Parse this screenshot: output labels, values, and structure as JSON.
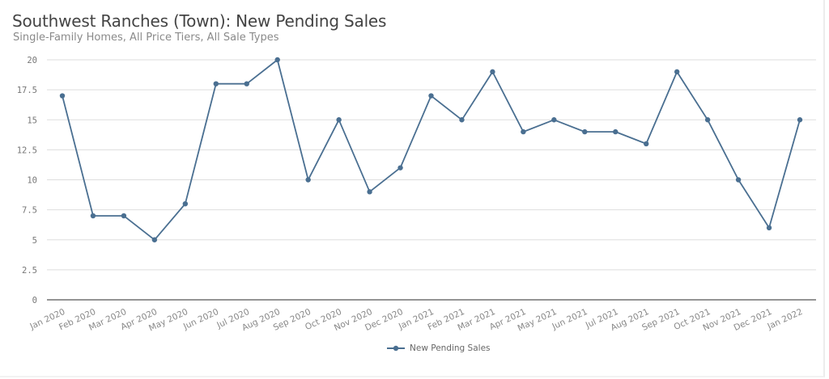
{
  "header": {
    "title": "Southwest Ranches (Town): New Pending Sales",
    "subtitle": "Single-Family Homes, All Price Tiers, All Sale Types"
  },
  "legend": {
    "items": [
      {
        "label": "New Pending Sales",
        "color": "#4a6f91"
      }
    ]
  },
  "colors": {
    "series": "#4a6f91",
    "grid": "#dddddd",
    "axis": "#555555"
  },
  "chart_data": {
    "type": "line",
    "title": "Southwest Ranches (Town): New Pending Sales",
    "subtitle": "Single-Family Homes, All Price Tiers, All Sale Types",
    "xlabel": "",
    "ylabel": "",
    "ylim": [
      0,
      20
    ],
    "yticks": [
      "0",
      "2.5",
      "5",
      "7.5",
      "10",
      "12.5",
      "15",
      "17.5",
      "20"
    ],
    "grid": true,
    "legend_position": "bottom",
    "categories": [
      "Jan 2020",
      "Feb 2020",
      "Mar 2020",
      "Apr 2020",
      "May 2020",
      "Jun 2020",
      "Jul 2020",
      "Aug 2020",
      "Sep 2020",
      "Oct 2020",
      "Nov 2020",
      "Dec 2020",
      "Jan 2021",
      "Feb 2021",
      "Mar 2021",
      "Apr 2021",
      "May 2021",
      "Jun 2021",
      "Jul 2021",
      "Aug 2021",
      "Sep 2021",
      "Oct 2021",
      "Nov 2021",
      "Dec 2021",
      "Jan 2022"
    ],
    "series": [
      {
        "name": "New Pending Sales",
        "values": [
          17,
          7,
          7,
          5,
          8,
          18,
          18,
          20,
          10,
          15,
          9,
          11,
          17,
          15,
          19,
          14,
          15,
          14,
          14,
          13,
          19,
          15,
          10,
          6,
          15
        ]
      }
    ]
  }
}
